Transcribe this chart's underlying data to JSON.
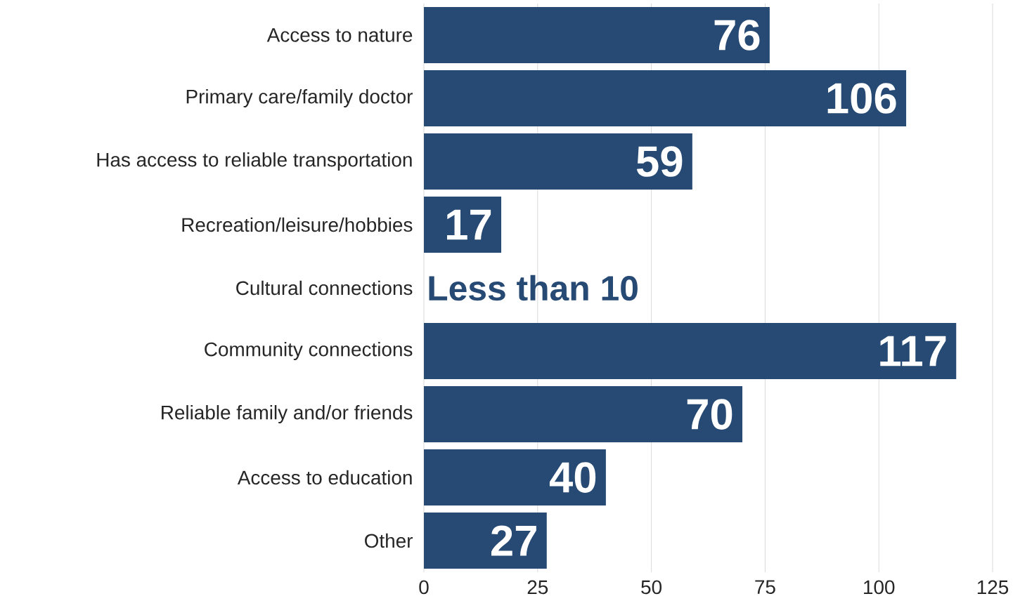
{
  "chart_data": {
    "type": "bar",
    "orientation": "horizontal",
    "categories": [
      "Access to nature",
      "Primary care/family doctor",
      "Has access to reliable transportation",
      "Recreation/leisure/hobbies",
      "Cultural connections",
      "Community connections",
      "Reliable family and/or friends",
      "Access to education",
      "Other"
    ],
    "values": [
      76,
      106,
      59,
      17,
      null,
      117,
      70,
      40,
      27
    ],
    "value_labels": [
      "76",
      "106",
      "59",
      "17",
      "Less than 10",
      "117",
      "70",
      "40",
      "27"
    ],
    "color": "#264a73",
    "xlim": [
      0,
      125
    ],
    "xticks": [
      0,
      25,
      50,
      75,
      100,
      125
    ],
    "grid": "x"
  }
}
